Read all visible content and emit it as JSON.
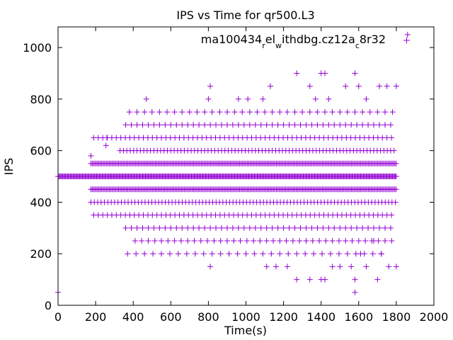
{
  "chart_data": {
    "type": "scatter",
    "title": "IPS vs Time for qr500.L3",
    "xlabel": "Time(s)",
    "ylabel": "IPS",
    "xlim": [
      0,
      2000
    ],
    "ylim": [
      0,
      1080
    ],
    "xticks": [
      0,
      200,
      400,
      600,
      800,
      1000,
      1200,
      1400,
      1600,
      1800,
      2000
    ],
    "yticks": [
      0,
      200,
      400,
      600,
      800,
      1000
    ],
    "grid": false,
    "legend_position": "top-right",
    "legend": {
      "parts": [
        {
          "t": "ma100434",
          "sub": false
        },
        {
          "t": "r",
          "sub": true
        },
        {
          "t": "el",
          "sub": false
        },
        {
          "t": "w",
          "sub": true
        },
        {
          "t": "ithdbg.cz12a",
          "sub": false
        },
        {
          "t": "c",
          "sub": true
        },
        {
          "t": "8r32",
          "sub": false
        }
      ]
    },
    "series": [
      {
        "color": "#9400d3",
        "marker": "plus",
        "bands": [
          {
            "y": 500,
            "x_start": 0,
            "x_end": 1800,
            "step": 5
          },
          {
            "y": 550,
            "x_start": 175,
            "x_end": 1800,
            "step": 7
          },
          {
            "y": 450,
            "x_start": 175,
            "x_end": 1800,
            "step": 7
          },
          {
            "y": 400,
            "x_start": 175,
            "x_end": 1800,
            "step": 18
          },
          {
            "y": 600,
            "x_start": 330,
            "x_end": 1800,
            "step": 18
          },
          {
            "y": 350,
            "x_start": 190,
            "x_end": 1780,
            "step": 24
          },
          {
            "y": 650,
            "x_start": 190,
            "x_end": 1790,
            "step": 24
          },
          {
            "y": 700,
            "x_start": 360,
            "x_end": 1770,
            "step": 30
          },
          {
            "y": 300,
            "x_start": 360,
            "x_end": 1770,
            "step": 30
          },
          {
            "y": 250,
            "x_start": 410,
            "x_end": 1790,
            "step": 35
          },
          {
            "y": 750,
            "x_start": 380,
            "x_end": 1780,
            "step": 40
          },
          {
            "y": 200,
            "x_start": 370,
            "x_end": 1760,
            "step": 45
          }
        ],
        "points": [
          [
            0,
            50
          ],
          [
            175,
            580
          ],
          [
            255,
            620
          ],
          [
            260,
            650
          ],
          [
            470,
            800
          ],
          [
            800,
            800
          ],
          [
            810,
            850
          ],
          [
            960,
            800
          ],
          [
            1010,
            800
          ],
          [
            1090,
            800
          ],
          [
            1130,
            850
          ],
          [
            1270,
            900
          ],
          [
            1340,
            850
          ],
          [
            1370,
            800
          ],
          [
            1400,
            900
          ],
          [
            1420,
            900
          ],
          [
            1440,
            800
          ],
          [
            1530,
            850
          ],
          [
            1580,
            900
          ],
          [
            1600,
            850
          ],
          [
            1640,
            800
          ],
          [
            1710,
            850
          ],
          [
            1750,
            850
          ],
          [
            1800,
            850
          ],
          [
            1860,
            1050
          ],
          [
            1270,
            100
          ],
          [
            1340,
            100
          ],
          [
            1400,
            100
          ],
          [
            1420,
            100
          ],
          [
            1580,
            50
          ],
          [
            1580,
            100
          ],
          [
            1700,
            100
          ],
          [
            810,
            150
          ],
          [
            1110,
            150
          ],
          [
            1160,
            150
          ],
          [
            1220,
            150
          ],
          [
            1500,
            150
          ],
          [
            1560,
            150
          ],
          [
            1640,
            150
          ],
          [
            1760,
            150
          ],
          [
            1800,
            150
          ],
          [
            1460,
            150
          ],
          [
            1610,
            200
          ],
          [
            1680,
            250
          ],
          [
            1720,
            200
          ]
        ]
      }
    ]
  }
}
